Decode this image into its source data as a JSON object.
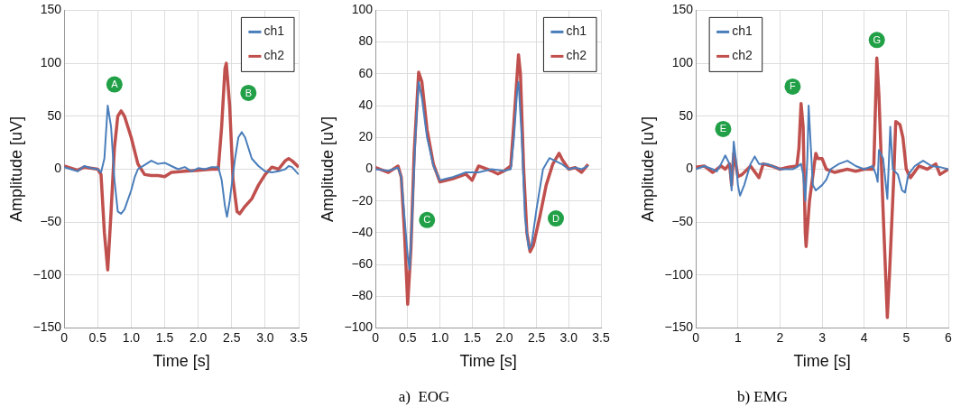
{
  "chart_data": [
    {
      "type": "line",
      "xlabel": "Time [s]",
      "ylabel": "Amplitude [uV]",
      "xlim": [
        0,
        3.5
      ],
      "ylim": [
        -150,
        150
      ],
      "xticks": [
        0,
        {
          "value": 0.5,
          "label": "0.5"
        },
        {
          "value": 1,
          "label": "1.0"
        },
        {
          "value": 1.5,
          "label": "1.5"
        },
        {
          "value": 2,
          "label": "2.0"
        },
        {
          "value": 2.5,
          "label": "2.5"
        },
        {
          "value": 3,
          "label": "3.0"
        },
        {
          "value": 3.5,
          "label": "3.5"
        }
      ],
      "yticks": [
        -150,
        -100,
        -50,
        0,
        50,
        100,
        150
      ],
      "grid": true,
      "legend": "top right",
      "marker": "none",
      "line_style": "solid",
      "annotations": [
        {
          "text": "A",
          "x": 0.75,
          "y": 80
        },
        {
          "text": "B",
          "x": 2.75,
          "y": 72
        }
      ],
      "series": [
        {
          "name": "ch1",
          "color": "#4a7ebb",
          "x": [
            0,
            0.1,
            0.2,
            0.3,
            0.4,
            0.5,
            0.55,
            0.6,
            0.65,
            0.7,
            0.75,
            0.8,
            0.85,
            0.9,
            1.0,
            1.05,
            1.1,
            1.2,
            1.3,
            1.4,
            1.5,
            1.6,
            1.7,
            1.8,
            1.9,
            2.0,
            2.1,
            2.2,
            2.3,
            2.35,
            2.4,
            2.43,
            2.47,
            2.55,
            2.6,
            2.65,
            2.7,
            2.8,
            2.9,
            3.0,
            3.1,
            3.2,
            3.3,
            3.35,
            3.4,
            3.5
          ],
          "values": [
            2,
            0,
            -2,
            3,
            1,
            0,
            -3,
            10,
            60,
            40,
            -10,
            -40,
            -42,
            -38,
            -20,
            -8,
            0,
            4,
            8,
            5,
            6,
            3,
            0,
            2,
            -2,
            1,
            0,
            2,
            2,
            -10,
            -35,
            -45,
            -30,
            10,
            30,
            35,
            30,
            10,
            3,
            -2,
            -3,
            -2,
            0,
            3,
            2,
            -5
          ]
        },
        {
          "name": "ch2",
          "color": "#c0504d",
          "x": [
            0,
            0.2,
            0.3,
            0.5,
            0.55,
            0.6,
            0.65,
            0.7,
            0.75,
            0.8,
            0.85,
            0.9,
            1.0,
            1.1,
            1.2,
            1.3,
            1.4,
            1.5,
            1.6,
            1.8,
            2.0,
            2.2,
            2.3,
            2.35,
            2.4,
            2.42,
            2.47,
            2.52,
            2.58,
            2.62,
            2.7,
            2.8,
            2.9,
            3.0,
            3.1,
            3.2,
            3.3,
            3.35,
            3.4,
            3.45,
            3.5
          ],
          "values": [
            3,
            -1,
            2,
            0,
            -5,
            -60,
            -95,
            -40,
            20,
            50,
            55,
            50,
            30,
            5,
            -5,
            -6,
            -6,
            -7,
            -3,
            -2,
            -1,
            0,
            0,
            40,
            95,
            100,
            60,
            -10,
            -40,
            -42,
            -35,
            -28,
            -15,
            -5,
            2,
            0,
            8,
            10,
            8,
            5,
            2
          ]
        }
      ]
    },
    {
      "type": "line",
      "xlabel": "Time [s]",
      "ylabel": "Amplitude [uV]",
      "xlim": [
        0,
        3.5
      ],
      "ylim": [
        -100,
        100
      ],
      "xticks": [
        0,
        {
          "value": 0.5,
          "label": "0.5"
        },
        {
          "value": 1,
          "label": "1.0"
        },
        {
          "value": 1.5,
          "label": "1.5"
        },
        {
          "value": 2,
          "label": "2.0"
        },
        {
          "value": 2.5,
          "label": "2.5"
        },
        {
          "value": 3,
          "label": "3.0"
        },
        {
          "value": 3.5,
          "label": "3.5"
        }
      ],
      "yticks": [
        -100,
        -80,
        -60,
        -40,
        -20,
        0,
        20,
        40,
        60,
        80,
        100
      ],
      "grid": true,
      "legend": "top right",
      "marker": "none",
      "line_style": "solid",
      "annotations": [
        {
          "text": "C",
          "x": 0.8,
          "y": -32
        },
        {
          "text": "D",
          "x": 2.8,
          "y": -31
        },
        "a)  EOG"
      ],
      "series": [
        {
          "name": "ch1",
          "color": "#4a7ebb",
          "x": [
            0,
            0.2,
            0.35,
            0.4,
            0.45,
            0.5,
            0.53,
            0.57,
            0.62,
            0.67,
            0.72,
            0.8,
            0.9,
            1.0,
            1.2,
            1.4,
            1.6,
            1.8,
            2.0,
            2.1,
            2.15,
            2.2,
            2.22,
            2.27,
            2.32,
            2.38,
            2.42,
            2.5,
            2.6,
            2.7,
            2.8,
            2.9,
            3.0,
            3.1,
            3.2,
            3.3
          ],
          "values": [
            0,
            -1,
            1,
            -5,
            -30,
            -55,
            -63,
            -30,
            20,
            55,
            45,
            20,
            2,
            -7,
            -5,
            -2,
            -2,
            0,
            -1,
            0,
            20,
            50,
            55,
            20,
            -30,
            -50,
            -48,
            -25,
            0,
            7,
            5,
            3,
            0,
            1,
            0,
            2
          ]
        },
        {
          "name": "ch2",
          "color": "#c0504d",
          "x": [
            0,
            0.2,
            0.35,
            0.4,
            0.45,
            0.5,
            0.55,
            0.6,
            0.67,
            0.72,
            0.8,
            0.9,
            1.0,
            1.2,
            1.4,
            1.5,
            1.6,
            1.8,
            1.9,
            2.0,
            2.1,
            2.15,
            2.22,
            2.25,
            2.3,
            2.35,
            2.4,
            2.45,
            2.55,
            2.65,
            2.75,
            2.85,
            2.9,
            3.0,
            3.1,
            3.2,
            3.3
          ],
          "values": [
            1,
            -2,
            2,
            -5,
            -40,
            -85,
            -50,
            10,
            61,
            55,
            25,
            3,
            -8,
            -6,
            -3,
            -7,
            2,
            -1,
            -3,
            -1,
            2,
            30,
            72,
            60,
            0,
            -40,
            -52,
            -48,
            -30,
            -10,
            3,
            10,
            6,
            0,
            1,
            -2,
            3
          ]
        }
      ]
    },
    {
      "type": "line",
      "xlabel": "Time [s]",
      "ylabel": "Amplitude [uV]",
      "xlim": [
        0,
        6
      ],
      "ylim": [
        -150,
        150
      ],
      "xticks": [
        0,
        1,
        2,
        3,
        4,
        5,
        6
      ],
      "yticks": [
        -150,
        -100,
        -50,
        0,
        50,
        100,
        150
      ],
      "grid": true,
      "legend": "top left",
      "marker": "none",
      "line_style": "solid",
      "annotations": [
        {
          "text": "E",
          "x": 0.65,
          "y": 38
        },
        {
          "text": "F",
          "x": 2.3,
          "y": 78
        },
        {
          "text": "G",
          "x": 4.3,
          "y": 122
        },
        "b) EMG"
      ],
      "series": [
        {
          "name": "ch1",
          "color": "#4a7ebb",
          "x": [
            0,
            0.2,
            0.4,
            0.5,
            0.6,
            0.7,
            0.8,
            0.85,
            0.9,
            0.95,
            1.0,
            1.05,
            1.15,
            1.3,
            1.4,
            1.5,
            1.7,
            2.0,
            2.3,
            2.4,
            2.5,
            2.55,
            2.6,
            2.65,
            2.68,
            2.72,
            2.78,
            2.85,
            3.0,
            3.1,
            3.2,
            3.4,
            3.6,
            3.8,
            4.0,
            4.2,
            4.28,
            4.32,
            4.35,
            4.45,
            4.55,
            4.62,
            4.68,
            4.8,
            4.9,
            4.97,
            5.05,
            5.2,
            5.4,
            5.6,
            5.8,
            6.0
          ],
          "values": [
            0,
            3,
            0,
            -2,
            5,
            13,
            5,
            -20,
            26,
            10,
            -15,
            -25,
            -15,
            5,
            12,
            5,
            5,
            0,
            0,
            2,
            5,
            -5,
            -30,
            10,
            60,
            30,
            -15,
            -20,
            -15,
            -10,
            0,
            5,
            8,
            3,
            0,
            3,
            -5,
            -12,
            18,
            10,
            -28,
            40,
            0,
            -5,
            -20,
            -22,
            -5,
            3,
            8,
            3,
            2,
            0
          ]
        },
        {
          "name": "ch2",
          "color": "#c0504d",
          "x": [
            0,
            0.2,
            0.3,
            0.4,
            0.6,
            0.7,
            0.8,
            0.85,
            0.9,
            0.95,
            1.0,
            1.1,
            1.3,
            1.5,
            1.6,
            1.8,
            2.0,
            2.2,
            2.4,
            2.45,
            2.5,
            2.55,
            2.6,
            2.62,
            2.7,
            2.8,
            2.85,
            2.9,
            3.0,
            3.1,
            3.3,
            3.6,
            3.8,
            4.0,
            4.2,
            4.23,
            4.3,
            4.35,
            4.45,
            4.55,
            4.6,
            4.7,
            4.75,
            4.85,
            4.92,
            5.0,
            5.1,
            5.3,
            5.5,
            5.7,
            5.8,
            6.0
          ],
          "values": [
            2,
            3,
            0,
            -3,
            3,
            0,
            5,
            -15,
            15,
            5,
            -7,
            -5,
            3,
            -8,
            5,
            3,
            0,
            2,
            3,
            20,
            62,
            40,
            -60,
            -73,
            -30,
            0,
            15,
            10,
            10,
            0,
            -3,
            0,
            -2,
            0,
            0,
            5,
            105,
            70,
            -40,
            -140,
            -100,
            -10,
            45,
            42,
            30,
            0,
            -8,
            3,
            0,
            5,
            -5,
            0
          ]
        }
      ]
    }
  ]
}
